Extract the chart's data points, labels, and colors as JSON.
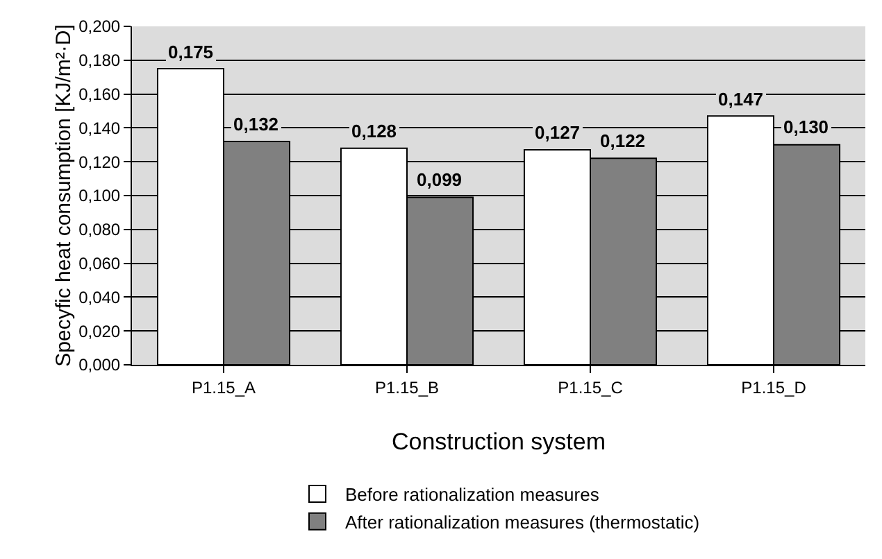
{
  "chart_data": {
    "type": "bar",
    "xlabel": "Construction system",
    "ylabel": "Specyfic heat consumption [KJ/m²·D]",
    "categories": [
      "P1.15_A",
      "P1.15_B",
      "P1.15_C",
      "P1.15_D"
    ],
    "series": [
      {
        "name": "Before rationalization measures",
        "color": "#ffffff",
        "values": [
          0.175,
          0.128,
          0.127,
          0.147
        ],
        "value_labels": [
          "0,175",
          "0,128",
          "0,127",
          "0,147"
        ]
      },
      {
        "name": "After rationalization measures (thermostatic)",
        "color": "#808080",
        "values": [
          0.132,
          0.099,
          0.122,
          0.13
        ],
        "value_labels": [
          "0,132",
          "0,099",
          "0,122",
          "0,130"
        ]
      }
    ],
    "ylim": [
      0,
      0.2
    ],
    "yticks": [
      {
        "value": 0,
        "label": "0,000"
      },
      {
        "value": 0.02,
        "label": "0,020"
      },
      {
        "value": 0.04,
        "label": "0,040"
      },
      {
        "value": 0.06,
        "label": "0,060"
      },
      {
        "value": 0.08,
        "label": "0,080"
      },
      {
        "value": 0.1,
        "label": "0,100"
      },
      {
        "value": 0.12,
        "label": "0,120"
      },
      {
        "value": 0.14,
        "label": "0,140"
      },
      {
        "value": 0.16,
        "label": "0,160"
      },
      {
        "value": 0.18,
        "label": "0,180"
      },
      {
        "value": 0.2,
        "label": "0,200"
      }
    ],
    "grid": "y",
    "legend": "bottom"
  }
}
